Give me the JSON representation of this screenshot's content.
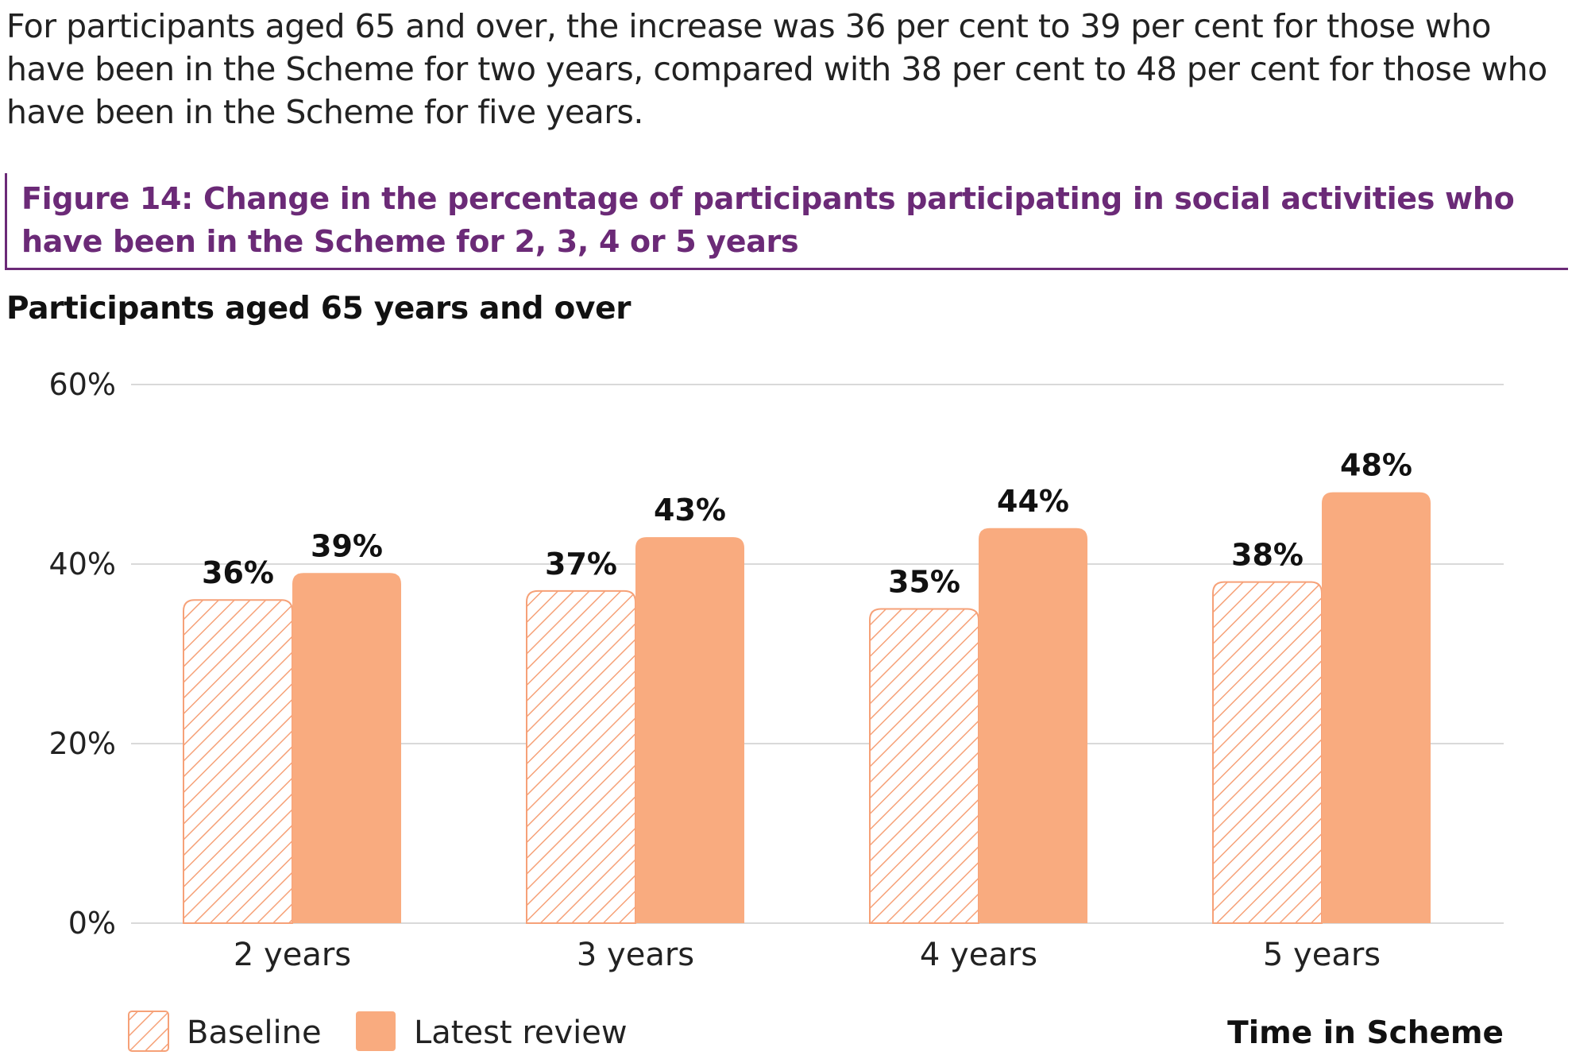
{
  "intro_text": "For participants aged 65 and over, the increase was 36 per cent to 39 per cent for those who have been in the Scheme for two years, compared with 38 per cent to 48 per cent for those who have been in the Scheme for five years.",
  "figure": {
    "title_line1": "Figure 14: Change in the percentage of participants participating in social activities who",
    "title_line2": "have been in the Scheme for 2, 3, 4 or 5 years",
    "subtitle": "Participants aged 65 years and over"
  },
  "colors": {
    "accent_purple": "#6b2a77",
    "bar_orange": "#f9ab7f",
    "hatch_orange": "#f6a178",
    "gridline": "#d9d9d9"
  },
  "chart_data": {
    "type": "bar",
    "title": "",
    "xlabel": "Time in Scheme",
    "ylabel": "",
    "ylim": [
      0,
      60
    ],
    "yticks": [
      0,
      20,
      40,
      60
    ],
    "ytick_labels": [
      "0%",
      "20%",
      "40%",
      "60%"
    ],
    "grid": true,
    "legend_position": "bottom-left",
    "categories": [
      "2 years",
      "3 years",
      "4 years",
      "5 years"
    ],
    "series": [
      {
        "name": "Baseline",
        "style": "hatched",
        "values": [
          36,
          37,
          35,
          38
        ],
        "labels": [
          "36%",
          "37%",
          "35%",
          "38%"
        ]
      },
      {
        "name": "Latest review",
        "style": "solid",
        "values": [
          39,
          43,
          44,
          48
        ],
        "labels": [
          "39%",
          "43%",
          "44%",
          "48%"
        ]
      }
    ]
  }
}
